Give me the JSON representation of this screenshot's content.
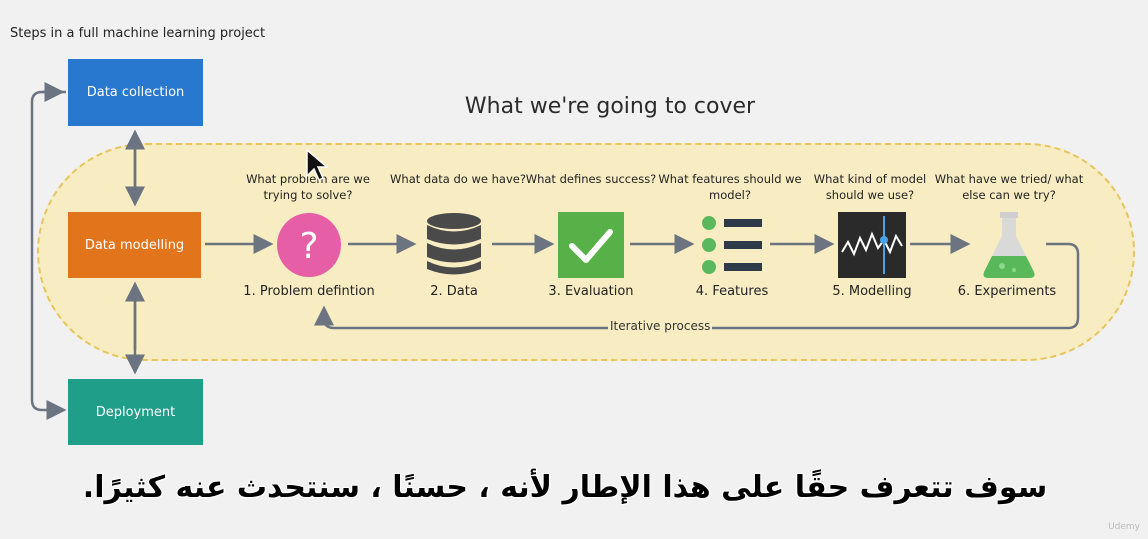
{
  "header": {
    "title": "Steps in a full machine learning project"
  },
  "left_steps": {
    "collection": "Data collection",
    "modelling": "Data modelling",
    "deployment": "Deployment"
  },
  "cover": {
    "title": "What we're going to cover"
  },
  "steps": [
    {
      "question": "What problem are we trying to solve?",
      "label": "1. Problem defintion",
      "icon": "question-icon",
      "color": "#e55ea6"
    },
    {
      "question": "What data do we have?",
      "label": "2. Data",
      "icon": "database-icon",
      "color": "#4d4d4d"
    },
    {
      "question": "What defines success?",
      "label": "3. Evaluation",
      "icon": "checkmark-icon",
      "color": "#58b048"
    },
    {
      "question": "What features should we model?",
      "label": "4. Features",
      "icon": "features-list-icon",
      "color": "#5cb85c"
    },
    {
      "question": "What kind of model should we use?",
      "label": "5. Modelling",
      "icon": "model-chart-icon",
      "color": "#2a2a2a"
    },
    {
      "question": "What have we tried/ what else can we try?",
      "label": "6. Experiments",
      "icon": "flask-icon",
      "color": "#59b95a"
    }
  ],
  "iterative": {
    "label": "Iterative process"
  },
  "subtitle": {
    "text": "سوف تتعرف حقًا على هذا الإطار لأنه ، حسنًا ، سنتحدث عنه كثيرًا."
  },
  "watermark": {
    "text": "Udemy"
  }
}
